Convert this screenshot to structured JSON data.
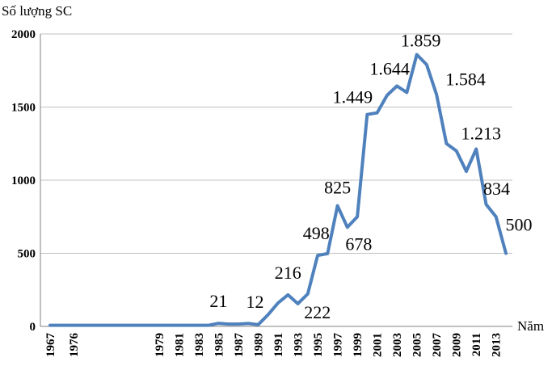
{
  "chart_data": {
    "type": "line",
    "ylabel": "Số lượng SC",
    "xlabel": "Năm",
    "ylim": [
      0,
      2000
    ],
    "yticks": [
      "0",
      "500",
      "1000",
      "1500",
      "2000"
    ],
    "ytick_values": [
      0,
      500,
      1000,
      1500,
      2000
    ],
    "grid": true,
    "legend": "none",
    "line_color": "#4f81bd",
    "x": [
      1967,
      1970,
      1973,
      1976,
      1977,
      1978,
      1979,
      1980,
      1981,
      1982,
      1983,
      1984,
      1985,
      1986,
      1987,
      1988,
      1989,
      1990,
      1991,
      1992,
      1993,
      1994,
      1995,
      1996,
      1997,
      1998,
      1999,
      2000,
      2001,
      2002,
      2003,
      2004,
      2005,
      2006,
      2007,
      2008,
      2009,
      2010,
      2011,
      2012,
      2013,
      2014
    ],
    "values": [
      8,
      8,
      8,
      8,
      8,
      8,
      8,
      8,
      8,
      8,
      8,
      8,
      21,
      16,
      16,
      20,
      12,
      80,
      160,
      216,
      155,
      222,
      485,
      498,
      825,
      678,
      750,
      1449,
      1460,
      1580,
      1644,
      1600,
      1859,
      1790,
      1584,
      1250,
      1200,
      1060,
      1213,
      834,
      750,
      500
    ],
    "xtick_labels": [
      "1967",
      "1976",
      "1979",
      "1981",
      "1983",
      "1985",
      "1987",
      "1989",
      "1991",
      "1993",
      "1995",
      "1997",
      "1999",
      "2001",
      "2003",
      "2005",
      "2007",
      "2009",
      "2011",
      "2013"
    ],
    "data_labels": [
      {
        "x": 1985,
        "y": 21,
        "text": "21"
      },
      {
        "x": 1989,
        "y": 12,
        "text": "12"
      },
      {
        "x": 1992,
        "y": 216,
        "text": "216"
      },
      {
        "x": 1994,
        "y": 222,
        "text": "222"
      },
      {
        "x": 1996,
        "y": 498,
        "text": "498"
      },
      {
        "x": 1997,
        "y": 825,
        "text": "825"
      },
      {
        "x": 1998,
        "y": 678,
        "text": "678"
      },
      {
        "x": 2000,
        "y": 1449,
        "text": "1.449"
      },
      {
        "x": 2003,
        "y": 1644,
        "text": "1.644"
      },
      {
        "x": 2005,
        "y": 1859,
        "text": "1.859"
      },
      {
        "x": 2007,
        "y": 1584,
        "text": "1.584"
      },
      {
        "x": 2011,
        "y": 1213,
        "text": "1.213"
      },
      {
        "x": 2012,
        "y": 834,
        "text": "834"
      },
      {
        "x": 2014,
        "y": 500,
        "text": "500"
      }
    ]
  }
}
